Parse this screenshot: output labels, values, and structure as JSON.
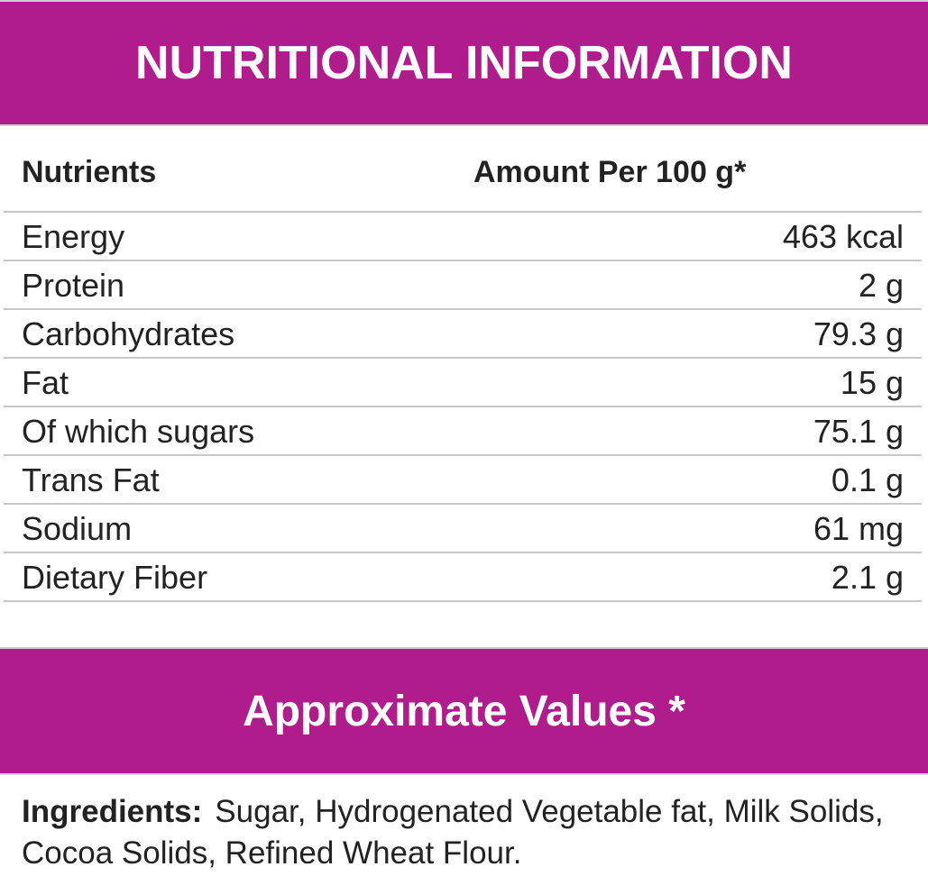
{
  "header": {
    "title": "NUTRITIONAL INFORMATION"
  },
  "table": {
    "columns": [
      "Nutrients",
      "Amount Per 100 g*"
    ],
    "rows": [
      [
        "Energy",
        "463 kcal"
      ],
      [
        "Protein",
        "2 g"
      ],
      [
        "Carbohydrates",
        "79.3 g"
      ],
      [
        "Fat",
        "15 g"
      ],
      [
        "Of which sugars",
        "75.1 g"
      ],
      [
        "Trans Fat",
        "0.1 g"
      ],
      [
        "Sodium",
        "61 mg"
      ],
      [
        "Dietary Fiber",
        "2.1 g"
      ]
    ]
  },
  "note": {
    "title": "Approximate Values *"
  },
  "ingredients": {
    "label": "Ingredients:",
    "text": "Sugar, Hydrogenated Vegetable fat, Milk Solids, Cocoa Solids, Refined Wheat Flour."
  }
}
